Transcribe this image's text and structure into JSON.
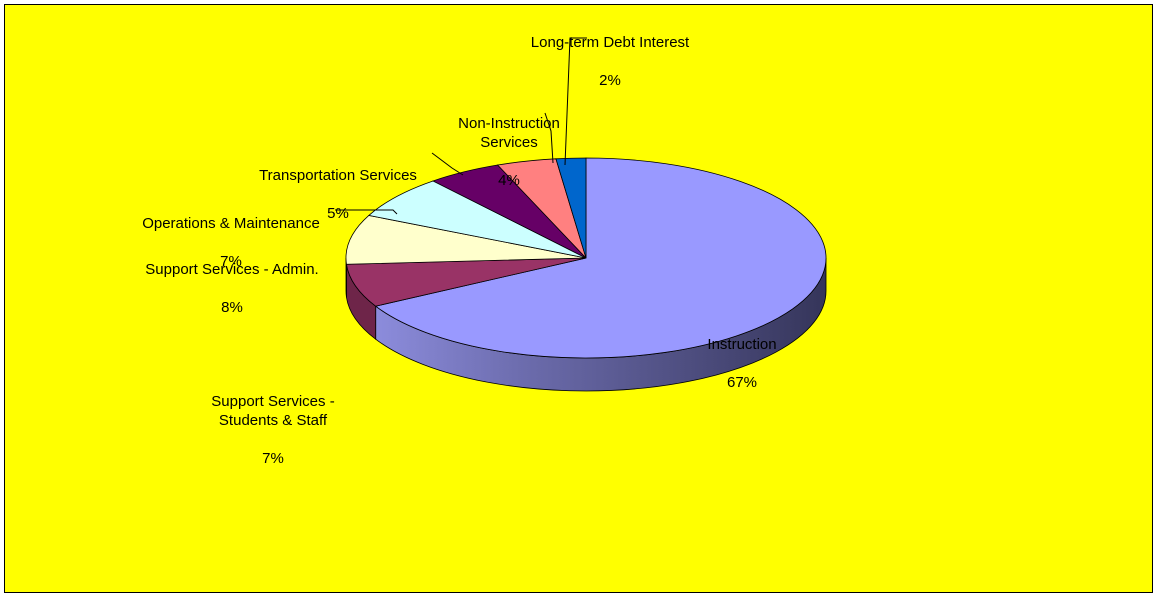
{
  "chart_data": {
    "type": "pie",
    "three_d": true,
    "background_color": "#ffff00",
    "legend": "none",
    "slices": [
      {
        "category": "Instruction",
        "value_label": "67%",
        "value": 67,
        "color": "#9999ff"
      },
      {
        "category": "Support Services -\nStudents & Staff",
        "value_label": "7%",
        "value": 7,
        "color": "#993366"
      },
      {
        "category": "Support Services - Admin.",
        "value_label": "8%",
        "value": 8,
        "color": "#ffffcc"
      },
      {
        "category": "Operations & Maintenance",
        "value_label": "7%",
        "value": 7,
        "color": "#ccffff"
      },
      {
        "category": "Transportation Services",
        "value_label": "5%",
        "value": 5,
        "color": "#660066"
      },
      {
        "category": "Non-Instruction\nServices",
        "value_label": "4%",
        "value": 4,
        "color": "#ff8080"
      },
      {
        "category": "Long-term Debt Interest",
        "value_label": "2%",
        "value": 2,
        "color": "#0066cc"
      }
    ]
  }
}
